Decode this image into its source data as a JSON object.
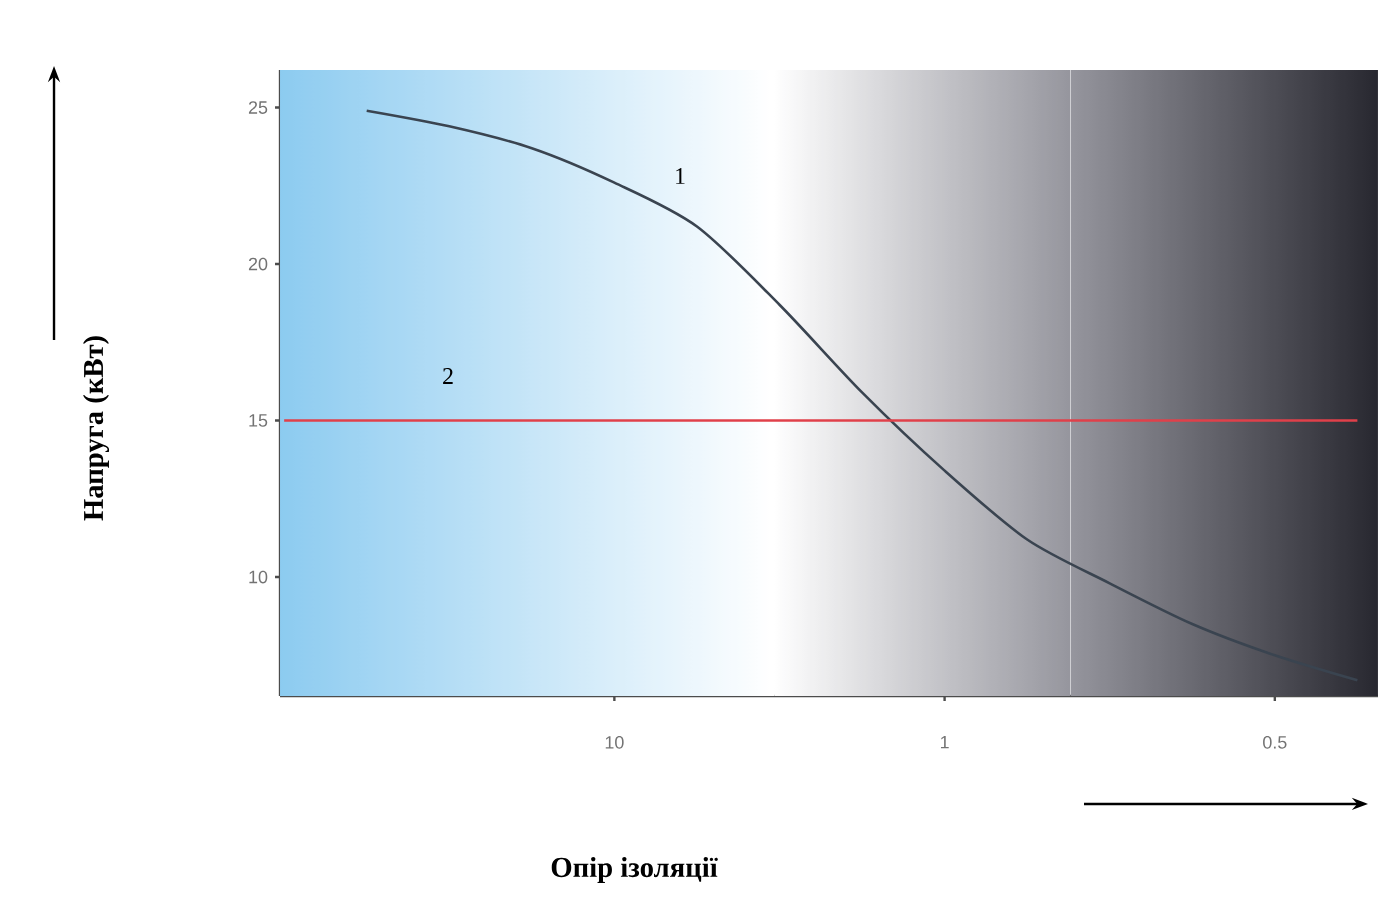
{
  "chart_data": {
    "type": "line",
    "xlabel": "Опір ізоляції",
    "ylabel": "Напруга (кВт)",
    "categories": [
      null,
      null,
      null,
      null,
      "10",
      null,
      null,
      null,
      "1",
      null,
      null,
      null,
      "0.5",
      null
    ],
    "ylim": [
      6.2,
      26.2
    ],
    "yticks": [
      10,
      15,
      20,
      25
    ],
    "series": [
      {
        "color": "#3a4450",
        "values": [
          null,
          24.9,
          24.4,
          23.7,
          22.6,
          21.2,
          18.7,
          15.9,
          13.4,
          11.2,
          9.8,
          8.5,
          7.5,
          6.7
        ]
      },
      {
        "color": "#e0404a",
        "values": [
          15,
          15,
          15,
          15,
          15,
          15,
          15,
          15,
          15,
          15,
          15,
          15,
          15,
          15
        ]
      }
    ],
    "annotations": [
      "1",
      "2"
    ]
  }
}
